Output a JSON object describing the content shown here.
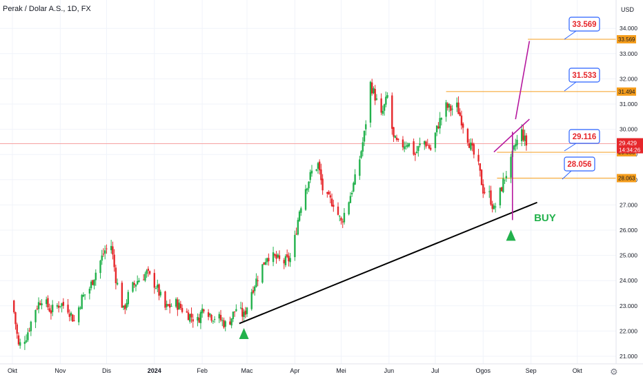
{
  "header": {
    "title": "Perak / Dolar A.S., 1D, FX"
  },
  "currency": "USD",
  "settings_icon": "gear-icon",
  "colors": {
    "up": "#26a69a",
    "up_candle": "#22b14c",
    "down": "#e6272b",
    "trendline": "#000000",
    "level": "#f59d1c",
    "magenta": "#b5179e",
    "callout_border": "#2962ff",
    "callout_text": "#e6272b",
    "buy": "#22b14c",
    "price_line": "#f6a0a0"
  },
  "chart_data": {
    "type": "candlestick",
    "symbol": "Perak / Dolar A.S.",
    "interval": "1D",
    "source": "FX",
    "y_axis": {
      "unit": "USD",
      "range": [
        20.8,
        35.0
      ],
      "ticks": [
        "21.000",
        "22.000",
        "23.000",
        "24.000",
        "25.000",
        "26.000",
        "27.000",
        "28.000",
        "29.000",
        "30.000",
        "31.000",
        "32.000",
        "33.000",
        "34.000"
      ]
    },
    "x_axis": {
      "ticks": [
        "Okt",
        "Nov",
        "Dis",
        "2024",
        "Feb",
        "Mac",
        "Apr",
        "Mei",
        "Jun",
        "Jul",
        "Ogos",
        "Sep",
        "Okt"
      ]
    },
    "close_path": [
      [
        "2023-10-01",
        23.2
      ],
      [
        "2023-10-05",
        21.4
      ],
      [
        "2023-10-10",
        21.8
      ],
      [
        "2023-10-16",
        22.9
      ],
      [
        "2023-10-20",
        23.3
      ],
      [
        "2023-10-26",
        22.8
      ],
      [
        "2023-11-01",
        23.1
      ],
      [
        "2023-11-06",
        22.9
      ],
      [
        "2023-11-10",
        22.4
      ],
      [
        "2023-11-15",
        23.3
      ],
      [
        "2023-11-20",
        23.7
      ],
      [
        "2023-11-25",
        24.5
      ],
      [
        "2023-11-30",
        25.2
      ],
      [
        "2023-12-04",
        25.4
      ],
      [
        "2023-12-07",
        24.1
      ],
      [
        "2023-12-12",
        22.8
      ],
      [
        "2023-12-16",
        23.6
      ],
      [
        "2023-12-21",
        24.0
      ],
      [
        "2023-12-27",
        24.3
      ],
      [
        "2024-01-02",
        23.8
      ],
      [
        "2024-01-08",
        22.9
      ],
      [
        "2024-01-15",
        23.1
      ],
      [
        "2024-01-22",
        22.7
      ],
      [
        "2024-01-29",
        22.4
      ],
      [
        "2024-02-02",
        23.0
      ],
      [
        "2024-02-07",
        22.6
      ],
      [
        "2024-02-12",
        22.5
      ],
      [
        "2024-02-17",
        22.2
      ],
      [
        "2024-02-23",
        22.9
      ],
      [
        "2024-02-28",
        22.6
      ],
      [
        "2024-03-04",
        23.6
      ],
      [
        "2024-03-09",
        24.3
      ],
      [
        "2024-03-14",
        25.0
      ],
      [
        "2024-03-19",
        24.9
      ],
      [
        "2024-03-24",
        24.7
      ],
      [
        "2024-03-30",
        24.9
      ],
      [
        "2024-04-04",
        26.8
      ],
      [
        "2024-04-08",
        27.7
      ],
      [
        "2024-04-12",
        28.3
      ],
      [
        "2024-04-16",
        28.6
      ],
      [
        "2024-04-20",
        27.3
      ],
      [
        "2024-04-26",
        27.1
      ],
      [
        "2024-05-01",
        26.3
      ],
      [
        "2024-05-06",
        27.2
      ],
      [
        "2024-05-11",
        28.2
      ],
      [
        "2024-05-16",
        29.8
      ],
      [
        "2024-05-20",
        31.8
      ],
      [
        "2024-05-23",
        31.3
      ],
      [
        "2024-05-27",
        30.5
      ],
      [
        "2024-05-31",
        31.3
      ],
      [
        "2024-06-04",
        29.6
      ],
      [
        "2024-06-08",
        29.3
      ],
      [
        "2024-06-13",
        29.5
      ],
      [
        "2024-06-18",
        29.0
      ],
      [
        "2024-06-23",
        29.6
      ],
      [
        "2024-06-28",
        29.2
      ],
      [
        "2024-07-03",
        30.2
      ],
      [
        "2024-07-08",
        30.9
      ],
      [
        "2024-07-11",
        30.8
      ],
      [
        "2024-07-15",
        30.9
      ],
      [
        "2024-07-19",
        30.2
      ],
      [
        "2024-07-24",
        29.3
      ],
      [
        "2024-07-29",
        28.5
      ],
      [
        "2024-08-01",
        27.6
      ],
      [
        "2024-08-05",
        27.4
      ],
      [
        "2024-08-08",
        26.8
      ],
      [
        "2024-08-12",
        27.5
      ],
      [
        "2024-08-15",
        28.1
      ],
      [
        "2024-08-19",
        28.7
      ],
      [
        "2024-08-22",
        29.4
      ],
      [
        "2024-08-26",
        29.9
      ],
      [
        "2024-08-29",
        29.4
      ]
    ],
    "last_price": "29.429",
    "countdown": "14:34:26",
    "price_labels": [
      "33.569",
      "31.494",
      "29.088",
      "28.063"
    ],
    "callouts": [
      "33.569",
      "31.533",
      "29.116",
      "28.056"
    ],
    "annotations": [
      "BUY"
    ],
    "levels": [
      {
        "price": 33.569,
        "from": "2024-08-30",
        "to": "2024-10-31"
      },
      {
        "price": 31.494,
        "from": "2024-07-08",
        "to": "2024-10-31"
      },
      {
        "price": 29.088,
        "from": "2024-08-10",
        "to": "2024-10-31"
      },
      {
        "price": 28.063,
        "from": "2024-08-10",
        "to": "2024-10-31"
      }
    ],
    "trendline": {
      "from": [
        "2024-02-25",
        22.3
      ],
      "to": [
        "2024-09-05",
        27.1
      ]
    },
    "magenta_lines": [
      {
        "from": [
          "2024-08-22",
          30.4
        ],
        "to": [
          "2024-08-31",
          33.5
        ]
      },
      {
        "from": [
          "2024-08-08",
          29.1
        ],
        "to": [
          "2024-08-31",
          30.4
        ]
      },
      {
        "from": [
          "2024-08-20",
          29.9
        ],
        "to": [
          "2024-08-20",
          26.4
        ]
      }
    ],
    "arrows_up": [
      [
        "2024-02-28",
        21.9
      ],
      [
        "2024-08-19",
        25.8
      ]
    ]
  }
}
